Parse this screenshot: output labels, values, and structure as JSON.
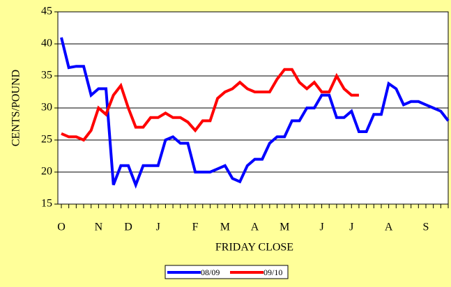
{
  "chart_data": {
    "type": "line",
    "ylabel": "CENTS/POUND",
    "xlabel": "FRIDAY CLOSE",
    "categories": [
      "O",
      null,
      null,
      null,
      null,
      "N",
      null,
      null,
      null,
      "D",
      null,
      null,
      null,
      "J",
      null,
      null,
      null,
      null,
      "F",
      null,
      null,
      null,
      "M",
      null,
      null,
      null,
      "A",
      null,
      null,
      null,
      "M",
      null,
      null,
      null,
      null,
      "J",
      null,
      null,
      null,
      "J",
      null,
      null,
      null,
      null,
      "A",
      null,
      null,
      null,
      null,
      "S",
      null,
      null,
      null
    ],
    "series": [
      {
        "name": "08/09",
        "color": "#0000ff",
        "values": [
          41,
          36.3,
          36.5,
          36.5,
          32,
          33,
          33,
          18,
          21,
          21,
          18,
          21,
          21,
          21,
          25,
          25.5,
          24.5,
          24.5,
          20,
          20,
          20,
          20.5,
          21,
          19,
          18.5,
          21,
          22,
          22,
          24.5,
          25.5,
          25.5,
          28,
          28,
          30,
          30,
          32,
          32,
          28.5,
          28.5,
          29.5,
          26.3,
          26.3,
          29,
          29,
          33.8,
          33,
          30.5,
          31,
          31,
          30.5,
          30,
          29.5,
          28
        ]
      },
      {
        "name": "09/10",
        "color": "#ff0000",
        "values": [
          26,
          25.5,
          25.5,
          25,
          26.5,
          30,
          29,
          32,
          33.5,
          30,
          27,
          27,
          28.5,
          28.5,
          29.2,
          28.5,
          28.5,
          27.8,
          26.5,
          28,
          28,
          31.5,
          32.5,
          33,
          34,
          33,
          32.5,
          32.5,
          32.5,
          34.5,
          36,
          36,
          34,
          33,
          34,
          32.5,
          32.5,
          35,
          33,
          32,
          32,
          null,
          null,
          null,
          null,
          null,
          null,
          null,
          null,
          null,
          null,
          null,
          null
        ]
      }
    ],
    "ylim": [
      15,
      45
    ],
    "yticks": [
      15,
      20,
      25,
      30,
      35,
      40,
      45
    ],
    "grid": true
  }
}
